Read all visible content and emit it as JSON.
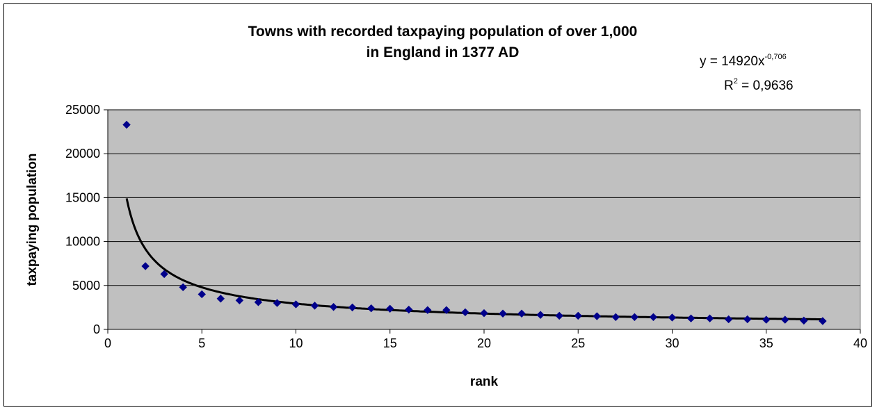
{
  "chart_data": {
    "type": "scatter",
    "title_lines": [
      "Towns with recorded taxpaying population of over 1,000",
      "in England in 1377 AD"
    ],
    "xlabel": "rank",
    "ylabel": "taxpaying population",
    "xlim": [
      0,
      40
    ],
    "ylim": [
      0,
      25000
    ],
    "xticks": [
      0,
      5,
      10,
      15,
      20,
      25,
      30,
      35,
      40
    ],
    "yticks": [
      0,
      5000,
      10000,
      15000,
      20000,
      25000
    ],
    "grid": "horizontal",
    "series": [
      {
        "x": [
          1,
          2,
          3,
          4,
          5,
          6,
          7,
          8,
          9,
          10,
          11,
          12,
          13,
          14,
          15,
          16,
          17,
          18,
          19,
          20,
          21,
          22,
          23,
          24,
          25,
          26,
          27,
          28,
          29,
          30,
          31,
          32,
          33,
          34,
          35,
          36,
          37,
          38
        ],
        "values": [
          23300,
          7200,
          6300,
          4800,
          4000,
          3500,
          3300,
          3100,
          3000,
          2850,
          2700,
          2550,
          2500,
          2400,
          2350,
          2250,
          2200,
          2200,
          1950,
          1850,
          1800,
          1800,
          1650,
          1550,
          1550,
          1500,
          1400,
          1400,
          1400,
          1350,
          1250,
          1250,
          1150,
          1150,
          1100,
          1100,
          1000,
          950
        ],
        "color": "#00008B",
        "marker": "diamond"
      }
    ],
    "trendline": {
      "type": "power",
      "a": 14920,
      "b": -0.706,
      "x_from": 1,
      "x_to": 38,
      "color": "#000000",
      "equation_prefix": "y = 14920x",
      "equation_exponent": "-0,706",
      "r2_prefix": "R",
      "r2_exponent": "2",
      "r2_value": " = 0,9636"
    },
    "plot_background": "#C0C0C0"
  }
}
